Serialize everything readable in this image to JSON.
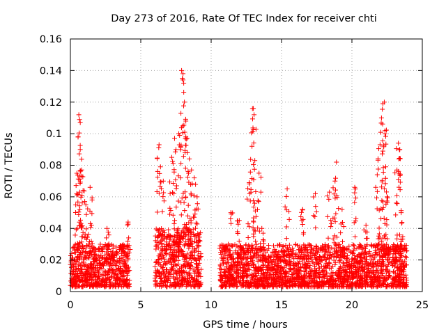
{
  "chart_data": {
    "type": "scatter",
    "title": "Day 273 of 2016, Rate Of TEC Index for receiver chti",
    "xlabel": "GPS time / hours",
    "ylabel": "ROTI / TECUs",
    "xlim": [
      0,
      25
    ],
    "ylim": [
      0,
      0.16
    ],
    "xticks": [
      0,
      5,
      10,
      15,
      20,
      25
    ],
    "xtick_labels": [
      "0",
      "5",
      "10",
      "15",
      "20",
      "25"
    ],
    "yticks": [
      0,
      0.02,
      0.04,
      0.06,
      0.08,
      0.1,
      0.12,
      0.14,
      0.16
    ],
    "ytick_labels": [
      "0",
      "0.02",
      "0.04",
      "0.06",
      "0.08",
      "0.1",
      "0.12",
      "0.14",
      "0.16"
    ],
    "grid": true,
    "marker": "+",
    "series_color": "#ff0000",
    "series": [
      {
        "name": "ROTI",
        "segments": [
          {
            "t_start": 0.0,
            "t_end": 4.2,
            "baseline": [
              0.003,
              0.03
            ]
          },
          {
            "t_start": 6.0,
            "t_end": 9.3,
            "baseline": [
              0.003,
              0.04
            ]
          },
          {
            "t_start": 10.6,
            "t_end": 23.9,
            "baseline": [
              0.003,
              0.03
            ]
          }
        ],
        "peaks": [
          {
            "x": 0.45,
            "y": 0.062
          },
          {
            "x": 0.55,
            "y": 0.098
          },
          {
            "x": 0.6,
            "y": 0.112
          },
          {
            "x": 0.65,
            "y": 0.109
          },
          {
            "x": 0.7,
            "y": 0.09
          },
          {
            "x": 0.8,
            "y": 0.077
          },
          {
            "x": 0.9,
            "y": 0.064
          },
          {
            "x": 1.1,
            "y": 0.055
          },
          {
            "x": 1.4,
            "y": 0.066
          },
          {
            "x": 1.5,
            "y": 0.042
          },
          {
            "x": 2.6,
            "y": 0.04
          },
          {
            "x": 4.1,
            "y": 0.044
          },
          {
            "x": 6.3,
            "y": 0.093
          },
          {
            "x": 6.4,
            "y": 0.079
          },
          {
            "x": 6.6,
            "y": 0.07
          },
          {
            "x": 7.2,
            "y": 0.085
          },
          {
            "x": 7.4,
            "y": 0.097
          },
          {
            "x": 7.5,
            "y": 0.09
          },
          {
            "x": 7.7,
            "y": 0.1
          },
          {
            "x": 7.9,
            "y": 0.14
          },
          {
            "x": 8.0,
            "y": 0.138
          },
          {
            "x": 8.05,
            "y": 0.132
          },
          {
            "x": 8.1,
            "y": 0.12
          },
          {
            "x": 8.2,
            "y": 0.108
          },
          {
            "x": 8.3,
            "y": 0.097
          },
          {
            "x": 8.45,
            "y": 0.084
          },
          {
            "x": 8.6,
            "y": 0.077
          },
          {
            "x": 8.8,
            "y": 0.072
          },
          {
            "x": 9.0,
            "y": 0.06
          },
          {
            "x": 11.4,
            "y": 0.05
          },
          {
            "x": 12.0,
            "y": 0.045
          },
          {
            "x": 12.7,
            "y": 0.069
          },
          {
            "x": 12.9,
            "y": 0.092
          },
          {
            "x": 13.0,
            "y": 0.116
          },
          {
            "x": 13.05,
            "y": 0.112
          },
          {
            "x": 13.1,
            "y": 0.083
          },
          {
            "x": 13.4,
            "y": 0.075
          },
          {
            "x": 13.6,
            "y": 0.04
          },
          {
            "x": 15.4,
            "y": 0.065
          },
          {
            "x": 16.5,
            "y": 0.052
          },
          {
            "x": 17.4,
            "y": 0.062
          },
          {
            "x": 18.4,
            "y": 0.063
          },
          {
            "x": 18.8,
            "y": 0.07
          },
          {
            "x": 18.9,
            "y": 0.082
          },
          {
            "x": 19.3,
            "y": 0.052
          },
          {
            "x": 20.2,
            "y": 0.066
          },
          {
            "x": 21.0,
            "y": 0.042
          },
          {
            "x": 21.8,
            "y": 0.074
          },
          {
            "x": 22.0,
            "y": 0.093
          },
          {
            "x": 22.1,
            "y": 0.11
          },
          {
            "x": 22.2,
            "y": 0.119
          },
          {
            "x": 22.3,
            "y": 0.12
          },
          {
            "x": 22.35,
            "y": 0.1
          },
          {
            "x": 22.4,
            "y": 0.079
          },
          {
            "x": 22.5,
            "y": 0.06
          },
          {
            "x": 23.2,
            "y": 0.077
          },
          {
            "x": 23.3,
            "y": 0.094
          },
          {
            "x": 23.4,
            "y": 0.09
          },
          {
            "x": 23.5,
            "y": 0.05
          }
        ]
      }
    ]
  }
}
